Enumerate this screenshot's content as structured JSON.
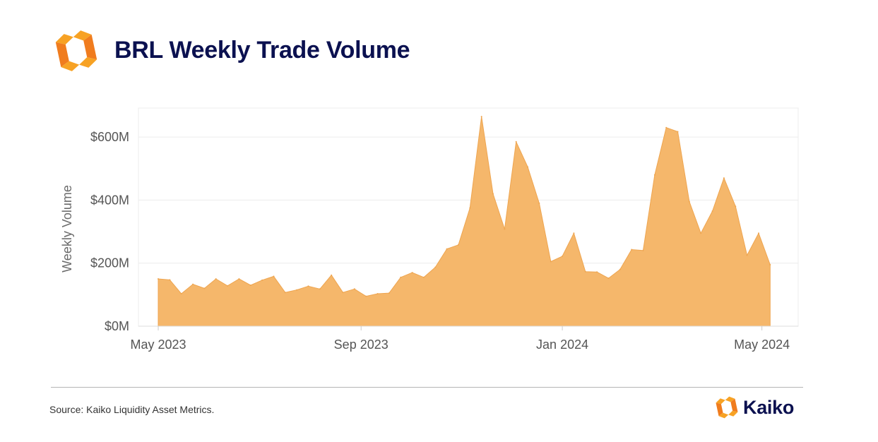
{
  "header": {
    "title": "BRL Weekly Trade Volume"
  },
  "footer": {
    "source": "Source: Kaiko Liquidity Asset Metrics.",
    "brand_name": "Kaiko"
  },
  "colors": {
    "area_fill": "#f5b76b",
    "area_stroke": "#eea550",
    "brand_orange": "#f7a224",
    "brand_orange_dark": "#f07c1e",
    "brand_navy": "#0b1150"
  },
  "icons": [
    "kaiko-logo-icon",
    "kaiko-brand-mark-icon"
  ],
  "chart_data": {
    "type": "area",
    "title": "",
    "xlabel": "",
    "ylabel": "Weekly Volume",
    "x_ticks": [
      {
        "label": "May 2023",
        "date": "2023-05-01"
      },
      {
        "label": "Sep 2023",
        "date": "2023-09-01"
      },
      {
        "label": "Jan 2024",
        "date": "2024-01-01"
      },
      {
        "label": "May 2024",
        "date": "2024-05-01"
      }
    ],
    "y_ticks": [
      {
        "label": "$0M",
        "value": 0
      },
      {
        "label": "$200M",
        "value": 200
      },
      {
        "label": "$400M",
        "value": 400
      },
      {
        "label": "$600M",
        "value": 600
      }
    ],
    "y_unit": "USD millions",
    "xlim": [
      "2023-04-19",
      "2024-05-23"
    ],
    "ylim": [
      0,
      692
    ],
    "grid": true,
    "legend": "none",
    "series": [
      {
        "x": [
          "2023-05-01",
          "2023-05-08",
          "2023-05-15",
          "2023-05-22",
          "2023-05-29",
          "2023-06-05",
          "2023-06-12",
          "2023-06-19",
          "2023-06-26",
          "2023-07-03",
          "2023-07-10",
          "2023-07-17",
          "2023-07-24",
          "2023-07-31",
          "2023-08-07",
          "2023-08-14",
          "2023-08-21",
          "2023-08-28",
          "2023-09-04",
          "2023-09-11",
          "2023-09-18",
          "2023-09-25",
          "2023-10-02",
          "2023-10-09",
          "2023-10-16",
          "2023-10-23",
          "2023-10-30",
          "2023-11-06",
          "2023-11-13",
          "2023-11-20",
          "2023-11-27",
          "2023-12-04",
          "2023-12-11",
          "2023-12-18",
          "2023-12-25",
          "2024-01-01",
          "2024-01-08",
          "2024-01-15",
          "2024-01-22",
          "2024-01-29",
          "2024-02-05",
          "2024-02-12",
          "2024-02-19",
          "2024-02-26",
          "2024-03-04",
          "2024-03-11",
          "2024-03-18",
          "2024-03-25",
          "2024-04-01",
          "2024-04-08",
          "2024-04-15",
          "2024-04-22",
          "2024-04-29",
          "2024-05-06"
        ],
        "values": [
          150,
          147,
          103,
          133,
          120,
          150,
          128,
          150,
          130,
          146,
          158,
          107,
          115,
          127,
          118,
          162,
          107,
          118,
          95,
          103,
          105,
          155,
          170,
          155,
          187,
          245,
          258,
          375,
          665,
          420,
          308,
          585,
          505,
          390,
          205,
          222,
          295,
          173,
          172,
          152,
          180,
          243,
          240,
          480,
          630,
          617,
          395,
          295,
          365,
          470,
          380,
          225,
          295,
          195
        ]
      }
    ]
  }
}
